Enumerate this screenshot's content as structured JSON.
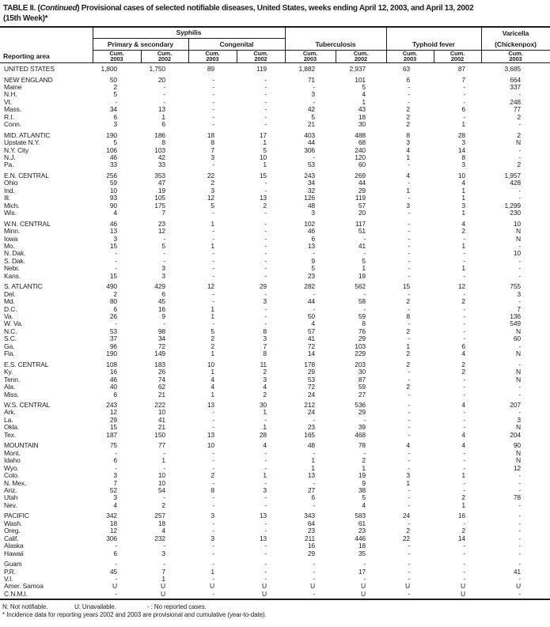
{
  "title": {
    "part1": "TABLE II. (",
    "continued": "Continued",
    "part2": ") Provisional cases of selected notifiable diseases, United States, weeks ending April 12, 2003, and April 13, 2002",
    "line2": "(15th Week)*"
  },
  "header": {
    "reporting_area": "Reporting area",
    "syphilis": "Syphilis",
    "primary_secondary": "Primary & secondary",
    "congenital": "Congenital",
    "tuberculosis": "Tuberculosis",
    "typhoid_fever": "Typhoid fever",
    "varicella_line1": "Varicella",
    "varicella_line2": "(Chickenpox)"
  },
  "table": {
    "columns": [
      {
        "l1": "Cum.",
        "l2": "2003"
      },
      {
        "l1": "Cum.",
        "l2": "2002"
      },
      {
        "l1": "Cum.",
        "l2": "2003"
      },
      {
        "l1": "Cum.",
        "l2": "2002"
      },
      {
        "l1": "Cum.",
        "l2": "2003"
      },
      {
        "l1": "Cum.",
        "l2": "2002"
      },
      {
        "l1": "Cum.",
        "l2": "2003"
      },
      {
        "l1": "Cum.",
        "l2": "2002"
      },
      {
        "l1": "Cum.",
        "l2": "2003"
      }
    ],
    "groups": [
      {
        "rows": [
          {
            "area": "UNITED STATES",
            "values": [
              "1,800",
              "1,750",
              "89",
              "119",
              "1,882",
              "2,937",
              "63",
              "87",
              "3,685"
            ]
          }
        ]
      },
      {
        "rows": [
          {
            "area": "NEW ENGLAND",
            "values": [
              "50",
              "20",
              "-",
              "-",
              "71",
              "101",
              "6",
              "7",
              "664"
            ]
          },
          {
            "area": "Maine",
            "values": [
              "2",
              "-",
              "-",
              "-",
              "-",
              "5",
              "-",
              "-",
              "337"
            ]
          },
          {
            "area": "N.H.",
            "values": [
              "5",
              "-",
              "-",
              "-",
              "3",
              "4",
              "-",
              "-",
              "-"
            ]
          },
          {
            "area": "Vt.",
            "values": [
              "-",
              "-",
              "-",
              "-",
              "-",
              "1",
              "-",
              "-",
              "248"
            ]
          },
          {
            "area": "Mass.",
            "values": [
              "34",
              "13",
              "-",
              "-",
              "42",
              "43",
              "2",
              "6",
              "77"
            ]
          },
          {
            "area": "R.I.",
            "values": [
              "6",
              "1",
              "-",
              "-",
              "5",
              "18",
              "2",
              "-",
              "2"
            ]
          },
          {
            "area": "Conn.",
            "values": [
              "3",
              "6",
              "-",
              "-",
              "21",
              "30",
              "2",
              "1",
              "-"
            ]
          }
        ]
      },
      {
        "rows": [
          {
            "area": "MID. ATLANTIC",
            "values": [
              "190",
              "186",
              "18",
              "17",
              "403",
              "488",
              "8",
              "28",
              "2"
            ]
          },
          {
            "area": "Upstate N.Y.",
            "values": [
              "5",
              "8",
              "8",
              "1",
              "44",
              "68",
              "3",
              "3",
              "N"
            ]
          },
          {
            "area": "N.Y. City",
            "values": [
              "106",
              "103",
              "7",
              "5",
              "306",
              "240",
              "4",
              "14",
              "-"
            ]
          },
          {
            "area": "N.J.",
            "values": [
              "46",
              "42",
              "3",
              "10",
              "-",
              "120",
              "1",
              "8",
              "-"
            ]
          },
          {
            "area": "Pa.",
            "values": [
              "33",
              "33",
              "-",
              "1",
              "53",
              "60",
              "-",
              "3",
              "2"
            ]
          }
        ]
      },
      {
        "rows": [
          {
            "area": "E.N. CENTRAL",
            "values": [
              "256",
              "353",
              "22",
              "15",
              "243",
              "269",
              "4",
              "10",
              "1,957"
            ]
          },
          {
            "area": "Ohio",
            "values": [
              "59",
              "47",
              "2",
              "-",
              "34",
              "44",
              "-",
              "4",
              "428"
            ]
          },
          {
            "area": "Ind.",
            "values": [
              "10",
              "19",
              "3",
              "-",
              "32",
              "29",
              "1",
              "1",
              "-"
            ]
          },
          {
            "area": "Ill.",
            "values": [
              "93",
              "105",
              "12",
              "13",
              "126",
              "119",
              "-",
              "1",
              "-"
            ]
          },
          {
            "area": "Mich.",
            "values": [
              "90",
              "175",
              "5",
              "2",
              "48",
              "57",
              "3",
              "3",
              "1,299"
            ]
          },
          {
            "area": "Wis.",
            "values": [
              "4",
              "7",
              "-",
              "-",
              "3",
              "20",
              "-",
              "1",
              "230"
            ]
          }
        ]
      },
      {
        "rows": [
          {
            "area": "W.N. CENTRAL",
            "values": [
              "46",
              "23",
              "1",
              "-",
              "102",
              "117",
              "-",
              "4",
              "10"
            ]
          },
          {
            "area": "Minn.",
            "values": [
              "13",
              "12",
              "-",
              "-",
              "46",
              "51",
              "-",
              "2",
              "N"
            ]
          },
          {
            "area": "Iowa",
            "values": [
              "3",
              "-",
              "-",
              "-",
              "6",
              "-",
              "-",
              "-",
              "N"
            ]
          },
          {
            "area": "Mo.",
            "values": [
              "15",
              "5",
              "1",
              "-",
              "13",
              "41",
              "-",
              "1",
              "-"
            ]
          },
          {
            "area": "N. Dak.",
            "values": [
              "-",
              "-",
              "-",
              "-",
              "-",
              "-",
              "-",
              "-",
              "10"
            ]
          },
          {
            "area": "S. Dak.",
            "values": [
              "-",
              "-",
              "-",
              "-",
              "9",
              "5",
              "-",
              "-",
              "-"
            ]
          },
          {
            "area": "Nebr.",
            "values": [
              "-",
              "3",
              "-",
              "-",
              "5",
              "1",
              "-",
              "1",
              "-"
            ]
          },
          {
            "area": "Kans.",
            "values": [
              "15",
              "3",
              "-",
              "-",
              "23",
              "19",
              "-",
              "-",
              "-"
            ]
          }
        ]
      },
      {
        "rows": [
          {
            "area": "S. ATLANTIC",
            "values": [
              "490",
              "429",
              "12",
              "29",
              "282",
              "562",
              "15",
              "12",
              "755"
            ]
          },
          {
            "area": "Del.",
            "values": [
              "2",
              "6",
              "-",
              "-",
              "-",
              "-",
              "-",
              "-",
              "3"
            ]
          },
          {
            "area": "Md.",
            "values": [
              "80",
              "45",
              "-",
              "3",
              "44",
              "58",
              "2",
              "2",
              "-"
            ]
          },
          {
            "area": "D.C.",
            "values": [
              "6",
              "16",
              "1",
              "-",
              "-",
              "-",
              "-",
              "-",
              "7"
            ]
          },
          {
            "area": "Va.",
            "values": [
              "26",
              "9",
              "1",
              "-",
              "50",
              "59",
              "8",
              "-",
              "136"
            ]
          },
          {
            "area": "W. Va.",
            "values": [
              "-",
              "-",
              "-",
              "-",
              "4",
              "8",
              "-",
              "-",
              "549"
            ]
          },
          {
            "area": "N.C.",
            "values": [
              "53",
              "98",
              "5",
              "8",
              "57",
              "76",
              "2",
              "-",
              "N"
            ]
          },
          {
            "area": "S.C.",
            "values": [
              "37",
              "34",
              "2",
              "3",
              "41",
              "29",
              "-",
              "-",
              "60"
            ]
          },
          {
            "area": "Ga.",
            "values": [
              "96",
              "72",
              "2",
              "7",
              "72",
              "103",
              "1",
              "6",
              "-"
            ]
          },
          {
            "area": "Fla.",
            "values": [
              "190",
              "149",
              "1",
              "8",
              "14",
              "229",
              "2",
              "4",
              "N"
            ]
          }
        ]
      },
      {
        "rows": [
          {
            "area": "E.S. CENTRAL",
            "values": [
              "108",
              "183",
              "10",
              "11",
              "178",
              "203",
              "2",
              "2",
              "-"
            ]
          },
          {
            "area": "Ky.",
            "values": [
              "16",
              "26",
              "1",
              "2",
              "29",
              "30",
              "-",
              "2",
              "N"
            ]
          },
          {
            "area": "Tenn.",
            "values": [
              "46",
              "74",
              "4",
              "3",
              "53",
              "87",
              "-",
              "-",
              "N"
            ]
          },
          {
            "area": "Ala.",
            "values": [
              "40",
              "62",
              "4",
              "4",
              "72",
              "59",
              "2",
              "-",
              "-"
            ]
          },
          {
            "area": "Miss.",
            "values": [
              "6",
              "21",
              "1",
              "2",
              "24",
              "27",
              "-",
              "-",
              "-"
            ]
          }
        ]
      },
      {
        "rows": [
          {
            "area": "W.S. CENTRAL",
            "values": [
              "243",
              "222",
              "13",
              "30",
              "212",
              "536",
              "-",
              "4",
              "207"
            ]
          },
          {
            "area": "Ark.",
            "values": [
              "12",
              "10",
              "-",
              "1",
              "24",
              "29",
              "-",
              "-",
              "-"
            ]
          },
          {
            "area": "La.",
            "values": [
              "29",
              "41",
              "-",
              "-",
              "-",
              "-",
              "-",
              "-",
              "3"
            ]
          },
          {
            "area": "Okla.",
            "values": [
              "15",
              "21",
              "-",
              "1",
              "23",
              "39",
              "-",
              "-",
              "N"
            ]
          },
          {
            "area": "Tex.",
            "values": [
              "187",
              "150",
              "13",
              "28",
              "165",
              "468",
              "-",
              "4",
              "204"
            ]
          }
        ]
      },
      {
        "rows": [
          {
            "area": "MOUNTAIN",
            "values": [
              "75",
              "77",
              "10",
              "4",
              "48",
              "78",
              "4",
              "4",
              "90"
            ]
          },
          {
            "area": "Mont.",
            "values": [
              "-",
              "-",
              "-",
              "-",
              "-",
              "-",
              "-",
              "-",
              "N"
            ]
          },
          {
            "area": "Idaho",
            "values": [
              "6",
              "1",
              "-",
              "-",
              "1",
              "2",
              "-",
              "-",
              "N"
            ]
          },
          {
            "area": "Wyo.",
            "values": [
              "-",
              "-",
              "-",
              "-",
              "1",
              "1",
              "-",
              "-",
              "12"
            ]
          },
          {
            "area": "Colo.",
            "values": [
              "3",
              "10",
              "2",
              "1",
              "13",
              "19",
              "3",
              "1",
              "-"
            ]
          },
          {
            "area": "N. Mex.",
            "values": [
              "7",
              "10",
              "-",
              "-",
              "-",
              "9",
              "1",
              "-",
              "-"
            ]
          },
          {
            "area": "Ariz.",
            "values": [
              "52",
              "54",
              "8",
              "3",
              "27",
              "38",
              "-",
              "-",
              "-"
            ]
          },
          {
            "area": "Utah",
            "values": [
              "3",
              "-",
              "-",
              "-",
              "6",
              "5",
              "-",
              "2",
              "78"
            ]
          },
          {
            "area": "Nev.",
            "values": [
              "4",
              "2",
              "-",
              "-",
              "-",
              "4",
              "-",
              "1",
              "-"
            ]
          }
        ]
      },
      {
        "rows": [
          {
            "area": "PACIFIC",
            "values": [
              "342",
              "257",
              "3",
              "13",
              "343",
              "583",
              "24",
              "16",
              "-"
            ]
          },
          {
            "area": "Wash.",
            "values": [
              "18",
              "18",
              "-",
              "-",
              "64",
              "61",
              "-",
              "-",
              "-"
            ]
          },
          {
            "area": "Oreg.",
            "values": [
              "12",
              "4",
              "-",
              "-",
              "23",
              "23",
              "2",
              "2",
              "-"
            ]
          },
          {
            "area": "Calif.",
            "values": [
              "306",
              "232",
              "3",
              "13",
              "211",
              "446",
              "22",
              "14",
              "-"
            ]
          },
          {
            "area": "Alaska",
            "values": [
              "-",
              "-",
              "-",
              "-",
              "16",
              "18",
              "-",
              "-",
              "-"
            ]
          },
          {
            "area": "Hawaii",
            "values": [
              "6",
              "3",
              "-",
              "-",
              "29",
              "35",
              "-",
              "-",
              "-"
            ]
          }
        ]
      },
      {
        "rows": [
          {
            "area": "Guam",
            "values": [
              "-",
              "-",
              "-",
              "-",
              "-",
              "-",
              "-",
              "-",
              "-"
            ]
          },
          {
            "area": "P.R.",
            "values": [
              "45",
              "7",
              "1",
              "-",
              "-",
              "17",
              "-",
              "-",
              "41"
            ]
          },
          {
            "area": "V.I.",
            "values": [
              "-",
              "1",
              "-",
              "-",
              "-",
              "-",
              "-",
              "-",
              "-"
            ]
          },
          {
            "area": "Amer. Samoa",
            "values": [
              "U",
              "U",
              "U",
              "U",
              "U",
              "U",
              "U",
              "U",
              "U"
            ]
          },
          {
            "area": "C.N.M.I.",
            "values": [
              "-",
              "U",
              "-",
              "U",
              "-",
              "U",
              "-",
              "U",
              "-"
            ]
          }
        ]
      }
    ]
  },
  "footnotes": {
    "legend_n": "N: Not notifiable.",
    "legend_u": "U: Unavailable.",
    "legend_dash": "- : No reported cases.",
    "note": "* Incidence data for reporting years 2002 and 2003 are provisional and cumulative (year-to-date)."
  }
}
